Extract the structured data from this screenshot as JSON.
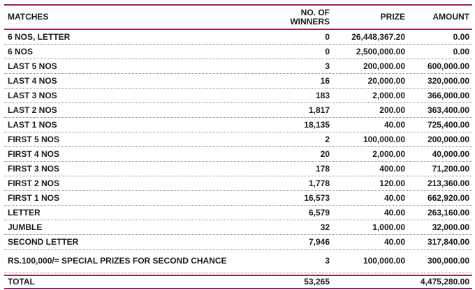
{
  "colors": {
    "accent_rule": "#a0205a",
    "dotted_rule": "#8a8a8a",
    "text": "#1a1a1a"
  },
  "headers": {
    "matches": "MATCHES",
    "winners_line1": "NO. OF",
    "winners_line2": "WINNERS",
    "prize": "PRIZE",
    "amount": "AMOUNT"
  },
  "rows": [
    {
      "match": "6 NOS, LETTER",
      "winners": "0",
      "prize": "26,448,367.20",
      "amount": "0.00"
    },
    {
      "match": "6 NOS",
      "winners": "0",
      "prize": "2,500,000.00",
      "amount": "0.00"
    },
    {
      "match": "LAST 5 NOS",
      "winners": "3",
      "prize": "200,000.00",
      "amount": "600,000.00"
    },
    {
      "match": "LAST 4 NOS",
      "winners": "16",
      "prize": "20,000.00",
      "amount": "320,000.00"
    },
    {
      "match": "LAST 3 NOS",
      "winners": "183",
      "prize": "2,000.00",
      "amount": "366,000.00"
    },
    {
      "match": "LAST 2 NOS",
      "winners": "1,817",
      "prize": "200.00",
      "amount": "363,400.00"
    },
    {
      "match": "LAST 1 NOS",
      "winners": "18,135",
      "prize": "40.00",
      "amount": "725,400.00"
    },
    {
      "match": "FIRST 5 NOS",
      "winners": "2",
      "prize": "100,000.00",
      "amount": "200,000.00"
    },
    {
      "match": "FIRST 4 NOS",
      "winners": "20",
      "prize": "2,000.00",
      "amount": "40,000.00"
    },
    {
      "match": "FIRST 3 NOS",
      "winners": "178",
      "prize": "400.00",
      "amount": "71,200.00"
    },
    {
      "match": "FIRST 2 NOS",
      "winners": "1,778",
      "prize": "120.00",
      "amount": "213,360.00"
    },
    {
      "match": "FIRST 1 NOS",
      "winners": "16,573",
      "prize": "40.00",
      "amount": "662,920.00"
    },
    {
      "match": "LETTER",
      "winners": "6,579",
      "prize": "40.00",
      "amount": "263,160.00"
    },
    {
      "match": "JUMBLE",
      "winners": "32",
      "prize": "1,000.00",
      "amount": "32,000.00"
    },
    {
      "match": "SECOND LETTER",
      "winners": "7,946",
      "prize": "40.00",
      "amount": "317,840.00"
    },
    {
      "match": "RS.100,000/= SPECIAL PRIZES FOR SECOND CHANCE",
      "winners": "3",
      "prize": "100,000.00",
      "amount": "300,000.00"
    }
  ],
  "total": {
    "label": "TOTAL",
    "winners": "53,265",
    "prize": "",
    "amount": "4,475,280.00"
  }
}
